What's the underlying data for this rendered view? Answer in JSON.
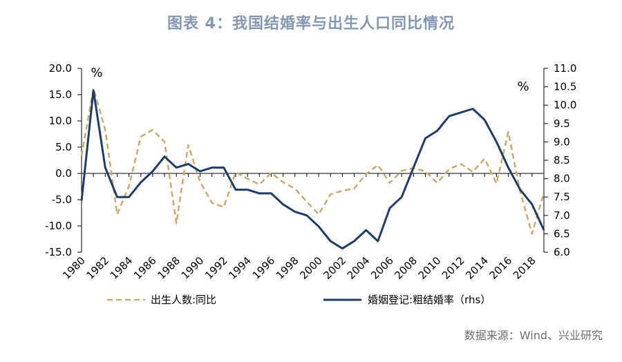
{
  "title": "图表 4：我国结婚率与出生人口同比情况",
  "source": "数据来源：Wind、兴业研究",
  "chart_data": {
    "type": "line",
    "x": [
      1980,
      1981,
      1982,
      1983,
      1984,
      1985,
      1986,
      1987,
      1988,
      1989,
      1990,
      1991,
      1992,
      1993,
      1994,
      1995,
      1996,
      1997,
      1998,
      1999,
      2000,
      2001,
      2002,
      2003,
      2004,
      2005,
      2006,
      2007,
      2008,
      2009,
      2010,
      2011,
      2012,
      2013,
      2014,
      2015,
      2016,
      2017,
      2018,
      2019
    ],
    "x_tick_labels": [
      "1980",
      "1982",
      "1984",
      "1986",
      "1988",
      "1990",
      "1992",
      "1994",
      "1996",
      "1998",
      "2000",
      "2002",
      "2004",
      "2006",
      "2008",
      "2010",
      "2012",
      "2014",
      "2016",
      "2018"
    ],
    "y_left": {
      "unit": "%",
      "ylim": [
        -15,
        20
      ],
      "ticks": [
        "-15.0",
        "-10.0",
        "-5.0",
        "0.0",
        "5.0",
        "10.0",
        "15.0",
        "20.0"
      ]
    },
    "y_right": {
      "unit": "%",
      "ylim": [
        6.0,
        11.0
      ],
      "ticks": [
        "6.0",
        "6.5",
        "7.0",
        "7.5",
        "8.0",
        "8.5",
        "9.0",
        "9.5",
        "10.0",
        "10.5",
        "11.0"
      ]
    },
    "series": [
      {
        "name": "出生人数:同比",
        "axis": "left",
        "color": "#c9a96e",
        "dash": "dashed",
        "values": [
          3.3,
          16.2,
          8.3,
          -7.8,
          -2.4,
          7.0,
          8.3,
          6.0,
          -9.5,
          5.4,
          -1.6,
          -5.6,
          -6.4,
          0.2,
          -1.0,
          -2.1,
          0.1,
          -1.7,
          -2.9,
          -5.4,
          -7.8,
          -4.0,
          -3.3,
          -2.9,
          -0.1,
          1.6,
          -1.8,
          0.5,
          1.0,
          0.4,
          -1.8,
          0.8,
          1.8,
          0.3,
          2.8,
          -1.9,
          7.9,
          -3.5,
          -11.5,
          -3.7
        ]
      },
      {
        "name": "婚姻登记:粗结婚率（rhs）",
        "axis": "right",
        "color": "#1f3d64",
        "dash": "solid",
        "values": [
          7.4,
          10.4,
          8.3,
          7.5,
          7.5,
          7.9,
          8.2,
          8.6,
          8.3,
          8.4,
          8.2,
          8.3,
          8.3,
          7.7,
          7.7,
          7.6,
          7.6,
          7.3,
          7.1,
          7.0,
          6.7,
          6.3,
          6.1,
          6.3,
          6.6,
          6.3,
          7.2,
          7.5,
          8.3,
          9.1,
          9.3,
          9.7,
          9.8,
          9.9,
          9.6,
          9.0,
          8.3,
          7.7,
          7.3,
          6.6
        ]
      }
    ]
  }
}
